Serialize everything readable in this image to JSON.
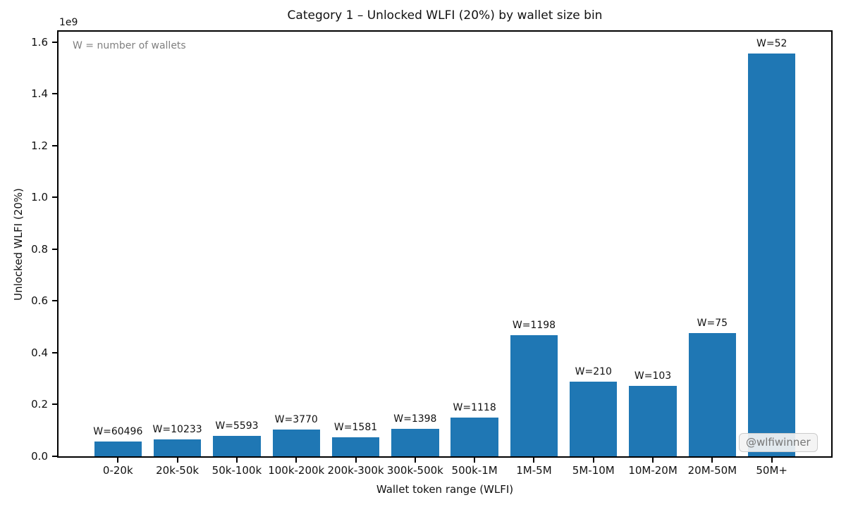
{
  "chart_data": {
    "type": "bar",
    "title": "Category 1 – Unlocked WLFI (20%) by wallet size bin",
    "xlabel": "Wallet token range (WLFI)",
    "ylabel": "Unlocked WLFI (20%)",
    "y_offset_label": "1e9",
    "annotation": "W = number of wallets",
    "watermark": "@wlfiwinner",
    "categories": [
      "0-20k",
      "20k-50k",
      "50k-100k",
      "100k-200k",
      "200k-300k",
      "300k-500k",
      "500k-1M",
      "1M-5M",
      "5M-10M",
      "10M-20M",
      "20M-50M",
      "50M+"
    ],
    "values": [
      56000000,
      64000000,
      78000000,
      104000000,
      74000000,
      107000000,
      150000000,
      469000000,
      287000000,
      273000000,
      476000000,
      1555000000
    ],
    "bar_labels": [
      "W=60496",
      "W=10233",
      "W=5593",
      "W=3770",
      "W=1581",
      "W=1398",
      "W=1118",
      "W=1198",
      "W=210",
      "W=103",
      "W=75",
      "W=52"
    ],
    "wallet_counts": [
      60496,
      10233,
      5593,
      3770,
      1581,
      1398,
      1118,
      1198,
      210,
      103,
      75,
      52
    ],
    "ylim": [
      0,
      1640000000
    ],
    "yticks": [
      0,
      200000000,
      400000000,
      600000000,
      800000000,
      1000000000,
      1200000000,
      1400000000,
      1600000000
    ],
    "ytick_labels": [
      "0.0",
      "0.2",
      "0.4",
      "0.6",
      "0.8",
      "1.0",
      "1.2",
      "1.4",
      "1.6"
    ],
    "grid": false,
    "legend": null,
    "bar_width_units": 0.8,
    "colors": {
      "bar": "#1f77b4",
      "axis": "#000000",
      "text": "#111111",
      "annotation_text": "#808080",
      "watermark_text": "#767676",
      "watermark_bg": "#f3f3f3",
      "watermark_border": "#cccccc"
    }
  }
}
